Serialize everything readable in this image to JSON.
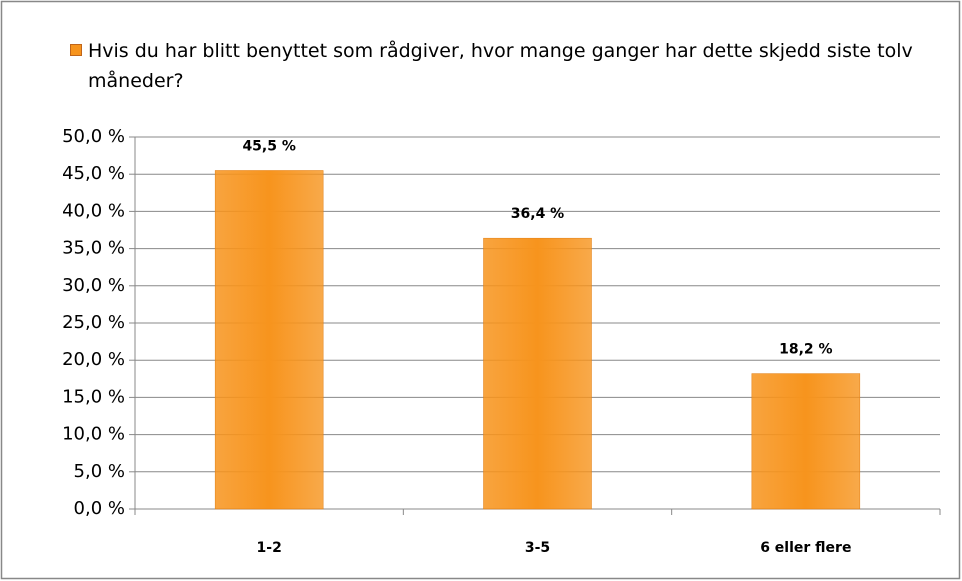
{
  "chart_data": {
    "type": "bar",
    "series": [
      {
        "name": "Hvis du har blitt benyttet som rådgiver, hvor mange ganger har dette skjedd siste tolv måneder?",
        "color": "#f7941d",
        "values": [
          45.5,
          36.4,
          18.2
        ],
        "value_labels": [
          "45,5 %",
          "36,4 %",
          "18,2 %"
        ]
      }
    ],
    "categories": [
      "1-2",
      "3-5",
      "6 eller flere"
    ],
    "ylim": [
      0,
      50
    ],
    "yticks": [
      {
        "value": 0,
        "label": "0,0 %"
      },
      {
        "value": 5,
        "label": "5,0 %"
      },
      {
        "value": 10,
        "label": "10,0 %"
      },
      {
        "value": 15,
        "label": "15,0 %"
      },
      {
        "value": 20,
        "label": "20,0 %"
      },
      {
        "value": 25,
        "label": "25,0 %"
      },
      {
        "value": 30,
        "label": "30,0 %"
      },
      {
        "value": 35,
        "label": "35,0 %"
      },
      {
        "value": 40,
        "label": "40,0 %"
      },
      {
        "value": 45,
        "label": "45,0 %"
      },
      {
        "value": 50,
        "label": "50,0 %"
      }
    ],
    "grid": true,
    "legend": "top"
  }
}
